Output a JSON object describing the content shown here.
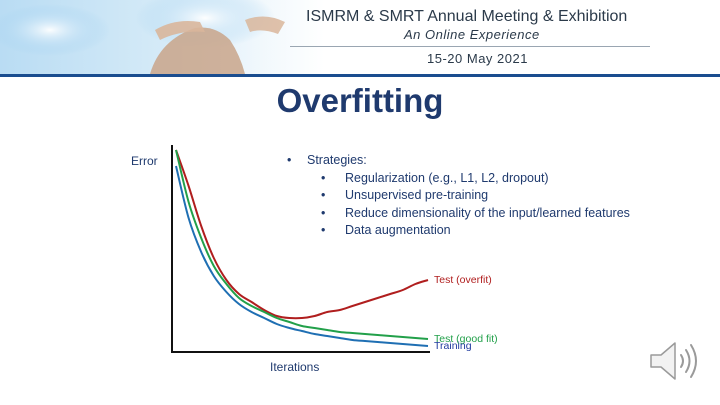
{
  "banner": {
    "title": "ISMRM & SMRT Annual Meeting & Exhibition",
    "subtitle": "An Online Experience",
    "dates": "15-20 May 2021"
  },
  "slide": {
    "title": "Overfitting"
  },
  "bullets": {
    "heading": "Strategies:",
    "items": [
      "Regularization (e.g., L1, L2, dropout)",
      "Unsupervised pre-training",
      "Reduce dimensionality of the input/learned features",
      "Data augmentation"
    ]
  },
  "chart_data": {
    "type": "line",
    "xlabel": "Iterations",
    "ylabel": "Error",
    "grid": false,
    "x": [
      0,
      0.05,
      0.1,
      0.15,
      0.2,
      0.25,
      0.3,
      0.35,
      0.4,
      0.45,
      0.5,
      0.55,
      0.6,
      0.65,
      0.7,
      0.75,
      0.8,
      0.85,
      0.9,
      0.95,
      1.0
    ],
    "series": [
      {
        "name": "Test (overfit)",
        "color": "#b01e1e",
        "values": [
          1.0,
          0.82,
          0.62,
          0.46,
          0.35,
          0.28,
          0.24,
          0.2,
          0.17,
          0.16,
          0.16,
          0.17,
          0.19,
          0.2,
          0.22,
          0.24,
          0.26,
          0.28,
          0.3,
          0.33,
          0.35
        ]
      },
      {
        "name": "Test (good fit)",
        "color": "#22a04a",
        "values": [
          1.0,
          0.74,
          0.56,
          0.42,
          0.33,
          0.26,
          0.22,
          0.19,
          0.16,
          0.14,
          0.12,
          0.11,
          0.1,
          0.09,
          0.085,
          0.08,
          0.075,
          0.07,
          0.065,
          0.06,
          0.055
        ]
      },
      {
        "name": "Training",
        "color": "#1f6fb3",
        "values": [
          0.92,
          0.66,
          0.49,
          0.37,
          0.29,
          0.23,
          0.19,
          0.16,
          0.13,
          0.11,
          0.095,
          0.08,
          0.07,
          0.06,
          0.05,
          0.045,
          0.04,
          0.035,
          0.03,
          0.025,
          0.02
        ]
      }
    ],
    "xlim": [
      0,
      1
    ],
    "ylim": [
      0,
      1.05
    ]
  },
  "icons": {
    "speaker": "speaker-icon"
  }
}
